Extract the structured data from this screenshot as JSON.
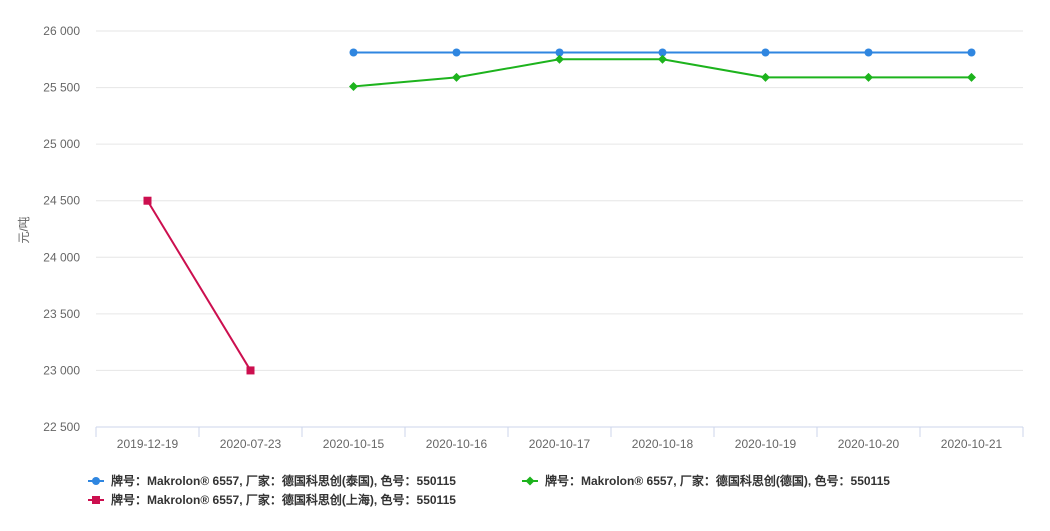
{
  "chart_data": {
    "type": "line",
    "categories": [
      "2019-12-19",
      "2020-07-23",
      "2020-10-15",
      "2020-10-16",
      "2020-10-17",
      "2020-10-18",
      "2020-10-19",
      "2020-10-20",
      "2020-10-21"
    ],
    "ylabel": "元/吨",
    "ylim": [
      22500,
      26000
    ],
    "yticks": [
      22500,
      23000,
      23500,
      24000,
      24500,
      25000,
      25500,
      26000
    ],
    "ytick_labels": [
      "22 500",
      "23 000",
      "23 500",
      "24 000",
      "24 500",
      "25 000",
      "25 500",
      "26 000"
    ],
    "grid": true,
    "legend_position": "bottom-left",
    "series": [
      {
        "name": "牌号：Makrolon® 6557, 厂家：德国科思创(泰国), 色号：550115",
        "color": "#2f86e0",
        "marker": "circle",
        "values": [
          null,
          null,
          25810,
          25810,
          25810,
          25810,
          25810,
          25810,
          25810
        ]
      },
      {
        "name": "牌号：Makrolon® 6557, 厂家：德国科思创(德国), 色号：550115",
        "color": "#1db31d",
        "marker": "diamond",
        "values": [
          null,
          null,
          25510,
          25590,
          25750,
          25750,
          25590,
          25590,
          25590
        ]
      },
      {
        "name": "牌号：Makrolon® 6557, 厂家：德国科思创(上海), 色号：550115",
        "color": "#cc0f4f",
        "marker": "square",
        "values": [
          24500,
          23000,
          null,
          null,
          null,
          null,
          null,
          null,
          null
        ]
      }
    ]
  }
}
